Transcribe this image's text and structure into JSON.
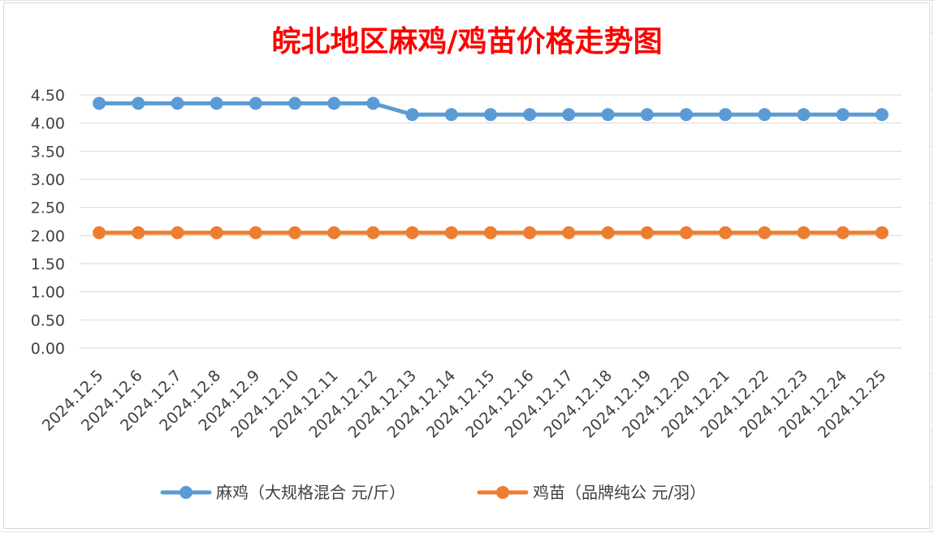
{
  "chart_data": {
    "type": "line",
    "title": "皖北地区麻鸡/鸡苗价格走势图",
    "xlabel": "",
    "ylabel": "",
    "ylim": [
      0,
      4.5
    ],
    "y_ticks": [
      "0.00",
      "0.50",
      "1.00",
      "1.50",
      "2.00",
      "2.50",
      "3.00",
      "3.50",
      "4.00",
      "4.50"
    ],
    "grid": true,
    "legend_position": "bottom",
    "categories": [
      "2024.12.5",
      "2024.12.6",
      "2024.12.7",
      "2024.12.8",
      "2024.12.9",
      "2024.12.10",
      "2024.12.11",
      "2024.12.12",
      "2024.12.13",
      "2024.12.14",
      "2024.12.15",
      "2024.12.16",
      "2024.12.17",
      "2024.12.18",
      "2024.12.19",
      "2024.12.20",
      "2024.12.21",
      "2024.12.22",
      "2024.12.23",
      "2024.12.24",
      "2024.12.25"
    ],
    "series": [
      {
        "name": "麻鸡（大规格混合 元/斤）",
        "color": "#5b9bd5",
        "values": [
          4.35,
          4.35,
          4.35,
          4.35,
          4.35,
          4.35,
          4.35,
          4.35,
          4.15,
          4.15,
          4.15,
          4.15,
          4.15,
          4.15,
          4.15,
          4.15,
          4.15,
          4.15,
          4.15,
          4.15,
          4.15
        ]
      },
      {
        "name": "鸡苗（品牌纯公 元/羽）",
        "color": "#ed7d31",
        "values": [
          2.05,
          2.05,
          2.05,
          2.05,
          2.05,
          2.05,
          2.05,
          2.05,
          2.05,
          2.05,
          2.05,
          2.05,
          2.05,
          2.05,
          2.05,
          2.05,
          2.05,
          2.05,
          2.05,
          2.05,
          2.05
        ]
      }
    ]
  }
}
